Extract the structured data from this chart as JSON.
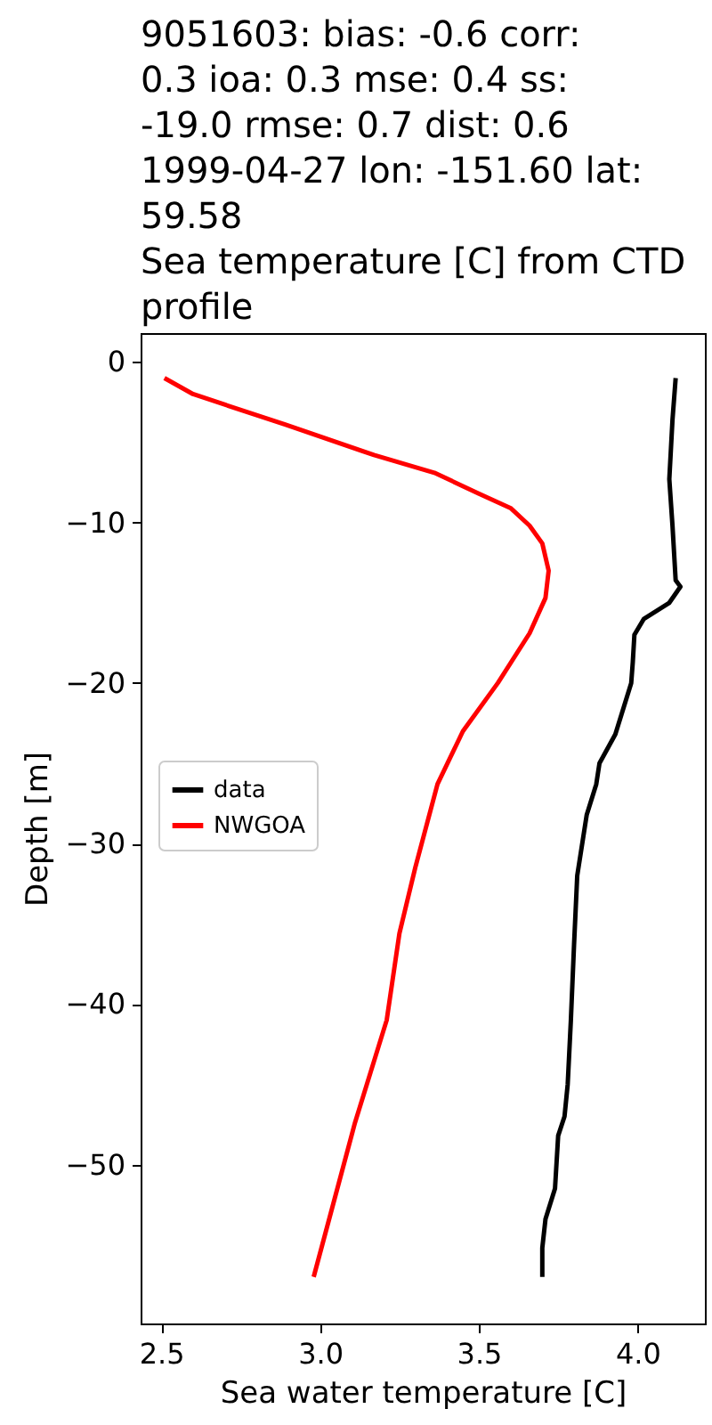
{
  "chart_data": {
    "type": "line",
    "title": "9051603: bias: -0.6  corr: 0.3  ioa: 0.3  mse: 0.4  ss: -19.0  rmse: 0.7  dist: 0.6\n1999-04-27 lon: -151.60 lat: 59.58\nSea temperature [C] from CTD profile",
    "xlabel": "Sea water temperature [C]",
    "ylabel": "Depth [m]",
    "series": [
      {
        "name": "data",
        "color": "#000000",
        "x": [
          4.12,
          4.11,
          4.1,
          4.11,
          4.12,
          4.135,
          4.1,
          4.02,
          3.99,
          3.985,
          3.98,
          3.93,
          3.88,
          3.87,
          3.84,
          3.81,
          3.8,
          3.79,
          3.78,
          3.77,
          3.75,
          3.74,
          3.71,
          3.7,
          3.7
        ],
        "values": [
          -1,
          -3.6,
          -7.3,
          -10.2,
          -13.6,
          -14,
          -15,
          -16,
          -17,
          -18.7,
          -20,
          -23.2,
          -25,
          -26.3,
          -28.2,
          -32,
          -36.3,
          -41,
          -45,
          -47,
          -48.2,
          -51.5,
          -53.4,
          -55.2,
          -57
        ]
      },
      {
        "name": "NWGOA",
        "color": "#ff0000",
        "x": [
          2.51,
          2.6,
          2.89,
          3.17,
          3.36,
          3.5,
          3.6,
          3.66,
          3.7,
          3.72,
          3.71,
          3.66,
          3.56,
          3.45,
          3.37,
          3.3,
          3.25,
          3.21,
          3.11,
          2.98
        ],
        "values": [
          -1,
          -2,
          -3.9,
          -5.8,
          -6.9,
          -8.2,
          -9.1,
          -10.2,
          -11.3,
          -13,
          -14.7,
          -16.9,
          -20,
          -23,
          -26.3,
          -31.5,
          -35.6,
          -41,
          -47.4,
          -57
        ]
      }
    ],
    "xlim": [
      2.435,
      4.212
    ],
    "ylim": [
      -59.9,
      1.8
    ],
    "xticks": [
      2.5,
      {
        "value": 3,
        "label": "3.0"
      },
      3.5,
      {
        "value": 4,
        "label": "4.0"
      }
    ],
    "yticks": [
      {
        "value": -50,
        "label": "−50"
      },
      {
        "value": -40,
        "label": "−40"
      },
      {
        "value": -30,
        "label": "−30"
      },
      {
        "value": -20,
        "label": "−20"
      },
      {
        "value": -10,
        "label": "−10"
      },
      0
    ],
    "legend": "center left",
    "grid": false,
    "marker": "none",
    "line_style": "solid"
  }
}
